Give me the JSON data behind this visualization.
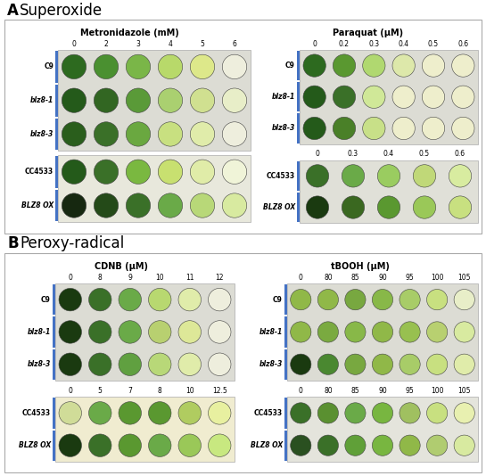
{
  "panel_A_title": "Superoxide",
  "panel_B_title": "Peroxy-radical",
  "subpanel_A_left_title": "Metronidazole (mM)",
  "subpanel_A_right_title": "Paraquat (μM)",
  "subpanel_B_left_title": "CDNB (μM)",
  "subpanel_B_right_title": "tBOOH (μM)",
  "A_left_top_cols": [
    "0",
    "2",
    "3",
    "4",
    "5",
    "6"
  ],
  "A_left_bot_cols": [
    "0",
    "2",
    "3",
    "4",
    "5",
    "6"
  ],
  "A_right_top_cols": [
    "0",
    "0.2",
    "0.3",
    "0.4",
    "0.5",
    "0.6"
  ],
  "A_right_bot_cols": [
    "0",
    "0.3",
    "0.4",
    "0.5",
    "0.6"
  ],
  "B_left_top_cols": [
    "0",
    "8",
    "9",
    "10",
    "11",
    "12"
  ],
  "B_left_bot_cols": [
    "0",
    "5",
    "7",
    "8",
    "10",
    "12.5"
  ],
  "B_right_top_cols": [
    "0",
    "80",
    "85",
    "90",
    "95",
    "100",
    "105"
  ],
  "B_right_bot_cols": [
    "0",
    "80",
    "85",
    "90",
    "95",
    "100",
    "105"
  ],
  "A_left_top_strains": [
    "C9",
    "blz8-1",
    "blz8-3"
  ],
  "A_left_bot_strains": [
    "CC4533",
    "BLZ8 OX"
  ],
  "A_right_top_strains": [
    "C9",
    "blz8-1",
    "blz8-3"
  ],
  "A_right_bot_strains": [
    "CC4533",
    "BLZ8 OX"
  ],
  "B_left_top_strains": [
    "C9",
    "blz8-1",
    "blz8-3"
  ],
  "B_left_bot_strains": [
    "CC4533",
    "BLZ8 OX"
  ],
  "B_right_top_strains": [
    "C9",
    "blz8-1",
    "blz8-3"
  ],
  "B_right_bot_strains": [
    "CC4533",
    "BLZ8 OX"
  ],
  "italic_strains": [
    "blz8-1",
    "blz8-3",
    "BLZ8 OX"
  ],
  "A_left_top_dots": [
    [
      "#2d6a1f",
      "#4a9030",
      "#7ab648",
      "#b8d96a",
      "#dde88a",
      "#eeeedd"
    ],
    [
      "#245a1a",
      "#326622",
      "#5a9a38",
      "#aad070",
      "#d0e090",
      "#e8eec8"
    ],
    [
      "#2a5e1c",
      "#3a7028",
      "#6aa840",
      "#c8e080",
      "#e0ecaa",
      "#eeeedd"
    ]
  ],
  "A_left_bot_dots": [
    [
      "#245a1a",
      "#3a7028",
      "#7ab840",
      "#c8e070",
      "#e0eca8",
      "#f0f4d8"
    ],
    [
      "#162810",
      "#244a18",
      "#3a7028",
      "#6aaa48",
      "#b8d878",
      "#d8eaa0"
    ]
  ],
  "A_right_top_dots": [
    [
      "#2d6a1f",
      "#5a9830",
      "#b0d870",
      "#dde8aa",
      "#eeeecc",
      "#eeeecc"
    ],
    [
      "#245a1a",
      "#3a7028",
      "#d0e898",
      "#eeeecc",
      "#eeeecc",
      "#eeeecc"
    ],
    [
      "#245a1a",
      "#4a8028",
      "#c8e088",
      "#eeeecc",
      "#eeeecc",
      "#eeeecc"
    ]
  ],
  "A_right_bot_dots": [
    [
      "#3a7028",
      "#6aaa48",
      "#9acc60",
      "#c0d878",
      "#d8eca0"
    ],
    [
      "#1a3a10",
      "#3a6820",
      "#5a9830",
      "#9ac858",
      "#c8e080"
    ]
  ],
  "B_left_top_dots": [
    [
      "#1a3a10",
      "#3a7028",
      "#6aaa48",
      "#b8d870",
      "#e0ecaa",
      "#eeeedd"
    ],
    [
      "#1a3a10",
      "#3a7028",
      "#6aaa48",
      "#b8d070",
      "#dde898",
      "#eeeedd"
    ],
    [
      "#1a3a10",
      "#3a7028",
      "#60a040",
      "#b8d878",
      "#e0ecaa",
      "#eeeedd"
    ]
  ],
  "B_left_bot_dots": [
    [
      "#d0dc98",
      "#6aaa48",
      "#5a9830",
      "#5a9830",
      "#b0cc60",
      "#e8f0a0"
    ],
    [
      "#1a3a10",
      "#3a7028",
      "#5a9830",
      "#6aaa48",
      "#9ac858",
      "#c8e880"
    ]
  ],
  "B_right_top_dots": [
    [
      "#90b848",
      "#90b848",
      "#78a840",
      "#88b848",
      "#a8cc68",
      "#c8e080",
      "#e8eec8"
    ],
    [
      "#90b848",
      "#7aaa40",
      "#88b848",
      "#90b848",
      "#98c050",
      "#b8d070",
      "#d8eaa0"
    ],
    [
      "#1a3a10",
      "#4a8830",
      "#78a840",
      "#90b848",
      "#a8cc68",
      "#c8e080",
      "#e0ecaa"
    ]
  ],
  "B_right_bot_dots": [
    [
      "#3a7028",
      "#5a9030",
      "#6aaa48",
      "#78b640",
      "#a0c060",
      "#c8e080",
      "#e8f0b0"
    ],
    [
      "#2a5020",
      "#3a7028",
      "#60a038",
      "#78b640",
      "#90b848",
      "#b0cc70",
      "#d8eaa0"
    ]
  ],
  "bg_top": "#dcdcd4",
  "bg_bot_A_left": "#e8e8dc",
  "bg_bot_A_right": "#e0e0d8",
  "bg_bot_B_left": "#f0ecd0",
  "bg_bot_B_right": "#e4e4dc",
  "bar_color": "#4472c4",
  "panel_border": "#aaaaaa"
}
